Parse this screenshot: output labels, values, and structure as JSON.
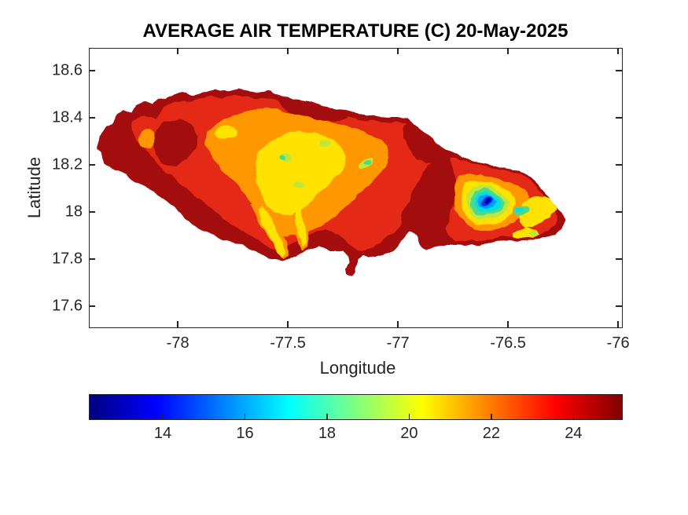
{
  "figure": {
    "title": "AVERAGE AIR TEMPERATURE (C) 20-May-2025",
    "background_color": "#FFFFFF",
    "axes_color": "#262626"
  },
  "chart_data": {
    "type": "heatmap",
    "subtype": "filled-contour-geographic-map",
    "region_shown": "Jamaica",
    "title": "AVERAGE AIR TEMPERATURE (C) 20-May-2025",
    "xlabel": "Longitude",
    "ylabel": "Latitude",
    "xlim": [
      -78.404,
      -75.979
    ],
    "ylim": [
      17.507,
      18.697
    ],
    "xticks": [
      -78,
      -77.5,
      -77,
      -76.5,
      -76
    ],
    "yticks": [
      18.6,
      18.4,
      18.2,
      18,
      17.8,
      17.6
    ],
    "grid": false,
    "legend": "none",
    "colorbar": {
      "orientation": "horizontal",
      "ticks": [
        14,
        16,
        18,
        20,
        22,
        24
      ],
      "value_range": [
        12.2,
        25.2
      ],
      "colormap": "jet",
      "gradient_stops": [
        {
          "pos": 0.0,
          "color": "#000080"
        },
        {
          "pos": 0.125,
          "color": "#0000FF"
        },
        {
          "pos": 0.375,
          "color": "#00FFFF"
        },
        {
          "pos": 0.625,
          "color": "#FFFF00"
        },
        {
          "pos": 0.875,
          "color": "#FF0000"
        },
        {
          "pos": 1.0,
          "color": "#800000"
        }
      ]
    },
    "sample_points": [
      {
        "lon": -78.35,
        "lat": 18.27,
        "temp_c": 25.0,
        "note": "western tip, dark red"
      },
      {
        "lon": -78.1,
        "lat": 18.3,
        "temp_c": 24.8,
        "note": "northwest inland, dark red"
      },
      {
        "lon": -77.9,
        "lat": 18.45,
        "temp_c": 23.5,
        "note": "northwest coast, red"
      },
      {
        "lon": -77.6,
        "lat": 18.35,
        "temp_c": 22.0,
        "note": "north-central, orange"
      },
      {
        "lon": -77.45,
        "lat": 18.25,
        "temp_c": 20.5,
        "note": "central highlands, yellow"
      },
      {
        "lon": -77.42,
        "lat": 18.22,
        "temp_c": 18.5,
        "note": "small green speck, central"
      },
      {
        "lon": -77.3,
        "lat": 17.95,
        "temp_c": 25.0,
        "note": "south-central plain, dark red"
      },
      {
        "lon": -77.25,
        "lat": 17.73,
        "temp_c": 25.0,
        "note": "southern hook peninsula, dark red"
      },
      {
        "lon": -76.62,
        "lat": 18.05,
        "temp_c": 13.0,
        "note": "Blue Mountains core, dark blue minimum"
      },
      {
        "lon": -76.58,
        "lat": 18.03,
        "temp_c": 16.0,
        "note": "cyan ring around Blue Mountains"
      },
      {
        "lon": -76.45,
        "lat": 18.02,
        "temp_c": 20.0,
        "note": "yellow band east of Blue Mountains"
      },
      {
        "lon": -76.25,
        "lat": 17.98,
        "temp_c": 24.5,
        "note": "eastern tip, dark red"
      }
    ]
  }
}
